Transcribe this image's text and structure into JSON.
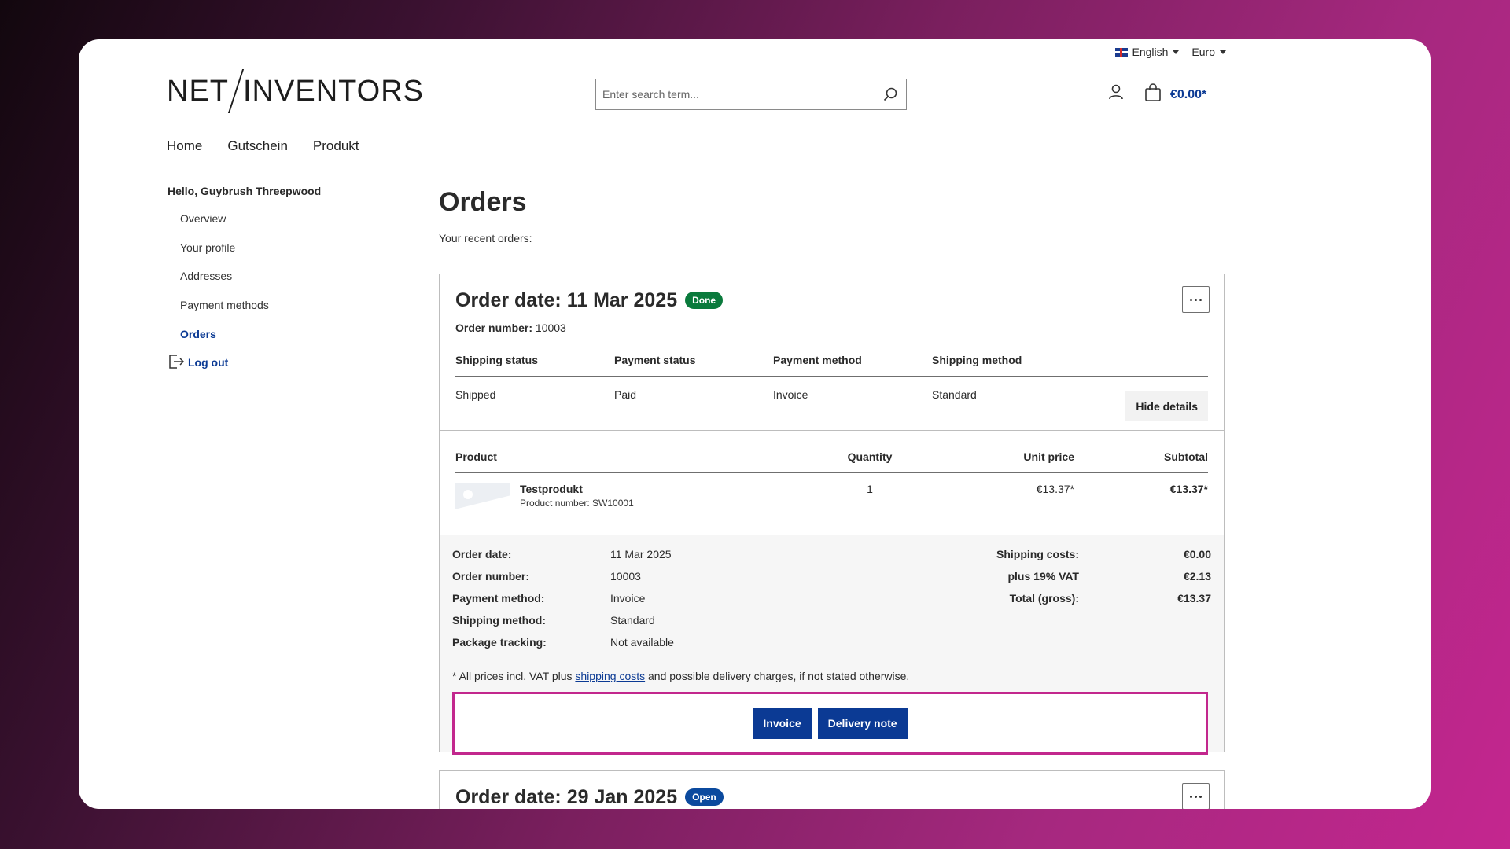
{
  "topbar": {
    "language": "English",
    "currency": "Euro"
  },
  "header": {
    "logo_left": "NET",
    "logo_right": "INVENTORS",
    "search_placeholder": "Enter search term...",
    "cart_total": "€0.00*"
  },
  "nav": [
    "Home",
    "Gutschein",
    "Produkt"
  ],
  "sidebar": {
    "greeting": "Hello, Guybrush Threepwood",
    "links": [
      "Overview",
      "Your profile",
      "Addresses",
      "Payment methods",
      "Orders"
    ],
    "logout": "Log out"
  },
  "page": {
    "title": "Orders",
    "subtitle": "Your recent orders:"
  },
  "order1": {
    "title": "Order date: 11 Mar 2025",
    "status_badge": "Done",
    "number_label": "Order number:",
    "number": "10003",
    "meta_headers": [
      "Shipping status",
      "Payment status",
      "Payment method",
      "Shipping method"
    ],
    "meta_values": [
      "Shipped",
      "Paid",
      "Invoice",
      "Standard"
    ],
    "hide_details": "Hide details",
    "items_headers": [
      "Product",
      "Quantity",
      "Unit price",
      "Subtotal"
    ],
    "item": {
      "name": "Testprodukt",
      "product_number": "Product number: SW10001",
      "quantity": "1",
      "unit_price": "€13.37*",
      "subtotal": "€13.37*"
    },
    "summary_left": [
      {
        "k": "Order date:",
        "v": "11 Mar 2025"
      },
      {
        "k": "Order number:",
        "v": "10003"
      },
      {
        "k": "Payment method:",
        "v": "Invoice"
      },
      {
        "k": "Shipping method:",
        "v": "Standard"
      },
      {
        "k": "Package tracking:",
        "v": "Not available"
      }
    ],
    "summary_right": [
      {
        "k": "Shipping costs:",
        "v": "€0.00"
      },
      {
        "k": "plus 19% VAT",
        "v": "€2.13"
      },
      {
        "k": "Total (gross):",
        "v": "€13.37"
      }
    ],
    "footnote_before": "* All prices incl. VAT plus ",
    "footnote_link": "shipping costs",
    "footnote_after": " and possible delivery charges, if not stated otherwise.",
    "invoice_button": "Invoice",
    "delivery_note_button": "Delivery note"
  },
  "order2": {
    "title": "Order date: 29 Jan 2025",
    "status_badge": "Open"
  },
  "colors": {
    "brand_blue": "#0b3a94",
    "done_green": "#0a7a3c",
    "open_blue": "#0b4a9e",
    "highlight": "#c2278d"
  }
}
